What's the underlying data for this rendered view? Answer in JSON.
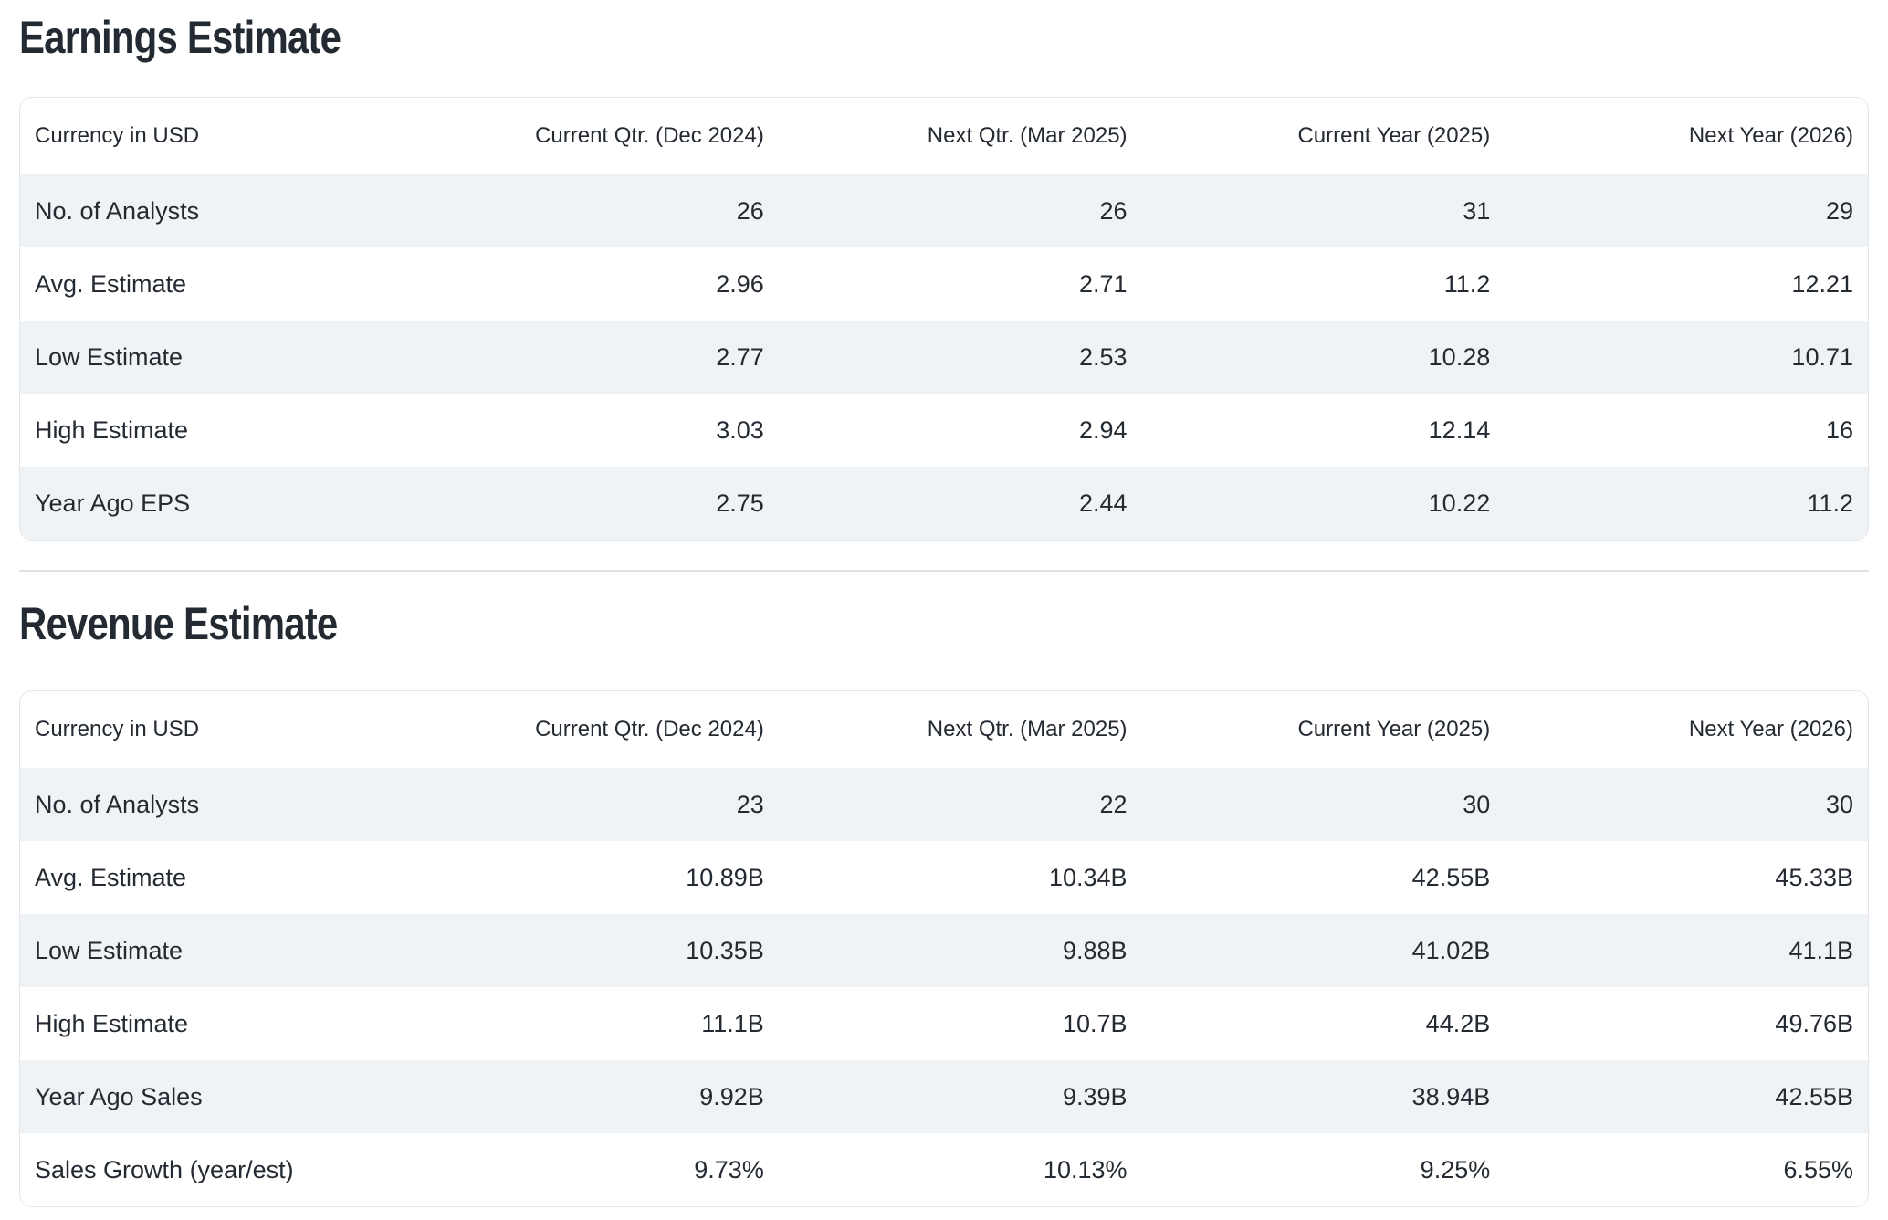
{
  "colors": {
    "text": "#232a31",
    "row_alt_background": "#f0f3f5",
    "card_border": "#e2e6eb",
    "background": "#ffffff"
  },
  "sections": [
    {
      "title": "Earnings Estimate",
      "table": {
        "currency_label": "Currency in USD",
        "columns": [
          "Current Qtr. (Dec 2024)",
          "Next Qtr. (Mar 2025)",
          "Current Year (2025)",
          "Next Year (2026)"
        ],
        "rows": [
          {
            "label": "No. of Analysts",
            "values": [
              "26",
              "26",
              "31",
              "29"
            ]
          },
          {
            "label": "Avg. Estimate",
            "values": [
              "2.96",
              "2.71",
              "11.2",
              "12.21"
            ]
          },
          {
            "label": "Low Estimate",
            "values": [
              "2.77",
              "2.53",
              "10.28",
              "10.71"
            ]
          },
          {
            "label": "High Estimate",
            "values": [
              "3.03",
              "2.94",
              "12.14",
              "16"
            ]
          },
          {
            "label": "Year Ago EPS",
            "values": [
              "2.75",
              "2.44",
              "10.22",
              "11.2"
            ]
          }
        ]
      }
    },
    {
      "title": "Revenue Estimate",
      "table": {
        "currency_label": "Currency in USD",
        "columns": [
          "Current Qtr. (Dec 2024)",
          "Next Qtr. (Mar 2025)",
          "Current Year (2025)",
          "Next Year (2026)"
        ],
        "rows": [
          {
            "label": "No. of Analysts",
            "values": [
              "23",
              "22",
              "30",
              "30"
            ]
          },
          {
            "label": "Avg. Estimate",
            "values": [
              "10.89B",
              "10.34B",
              "42.55B",
              "45.33B"
            ]
          },
          {
            "label": "Low Estimate",
            "values": [
              "10.35B",
              "9.88B",
              "41.02B",
              "41.1B"
            ]
          },
          {
            "label": "High Estimate",
            "values": [
              "11.1B",
              "10.7B",
              "44.2B",
              "49.76B"
            ]
          },
          {
            "label": "Year Ago Sales",
            "values": [
              "9.92B",
              "9.39B",
              "38.94B",
              "42.55B"
            ]
          },
          {
            "label": "Sales Growth (year/est)",
            "values": [
              "9.73%",
              "10.13%",
              "9.25%",
              "6.55%"
            ]
          }
        ]
      }
    }
  ]
}
